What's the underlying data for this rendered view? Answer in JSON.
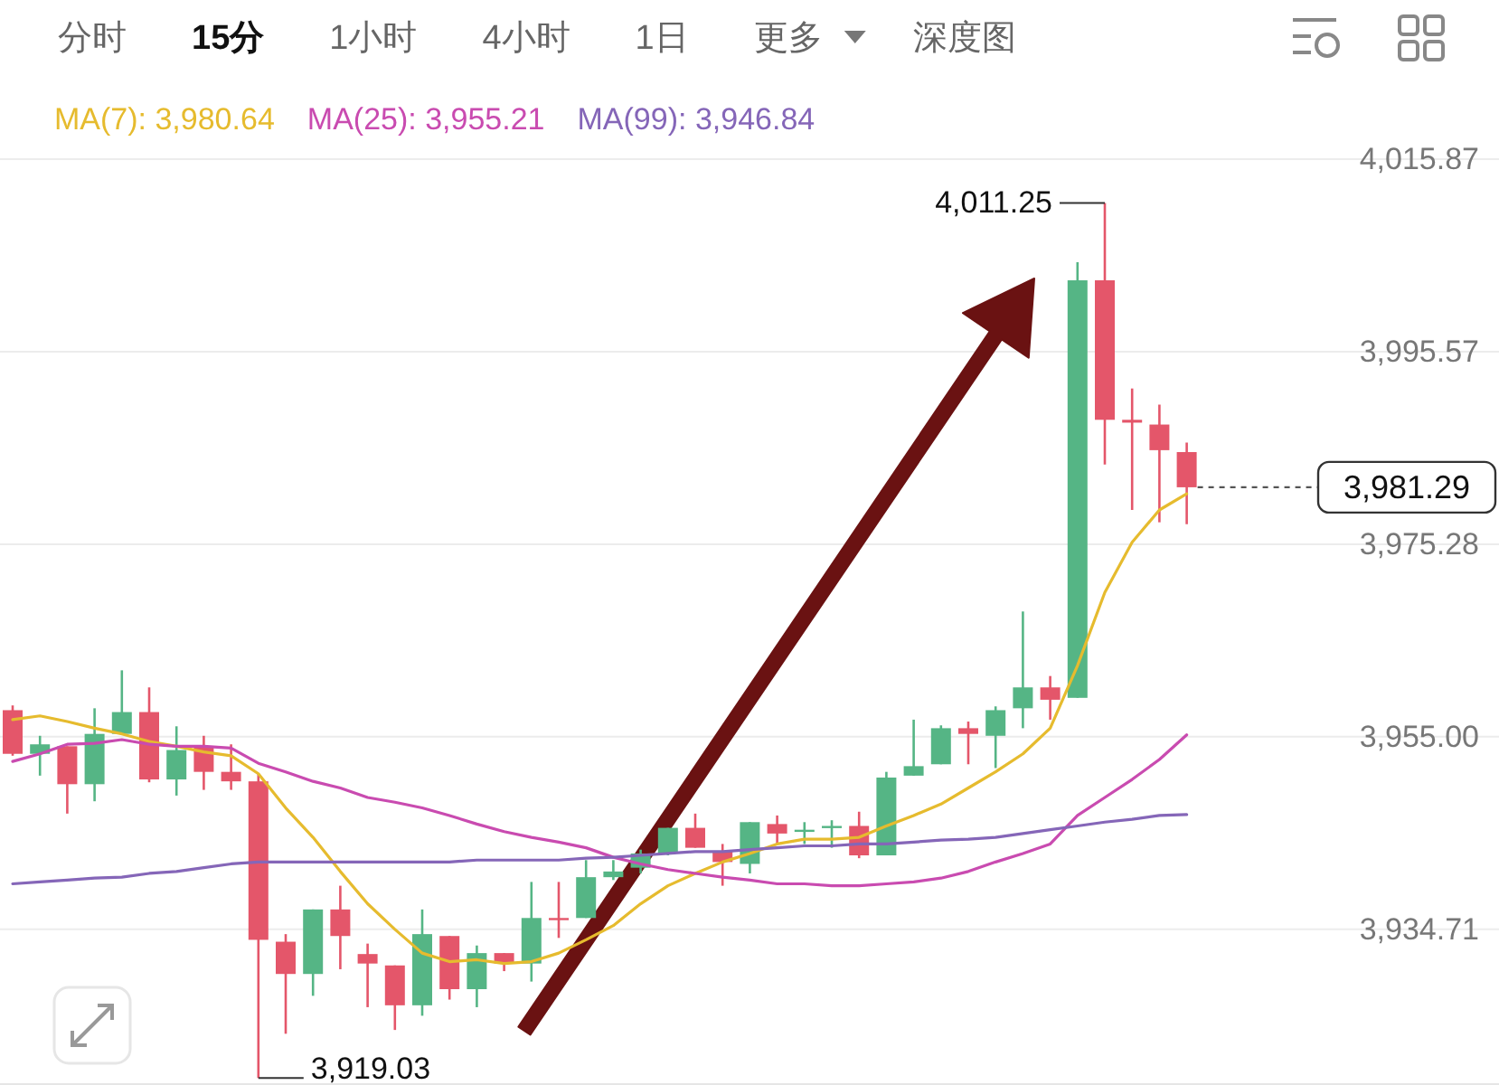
{
  "chart_data": {
    "type": "candlestick",
    "categories": [
      null,
      null,
      null,
      null,
      null,
      null,
      null,
      null,
      null,
      null,
      null,
      null,
      null,
      null,
      null,
      null,
      null,
      null,
      null,
      null,
      null,
      null,
      null,
      null,
      null,
      null,
      null,
      null,
      null,
      null,
      null,
      null,
      null,
      null,
      null,
      null,
      null,
      null,
      null,
      null,
      null,
      null,
      null,
      null
    ],
    "ohlc": [
      [
        3957.8,
        3958.3,
        3953.0,
        3953.2
      ],
      [
        3953.2,
        3955.1,
        3950.9,
        3954.2
      ],
      [
        3954.0,
        3954.0,
        3946.9,
        3950.0
      ],
      [
        3950.0,
        3958.0,
        3948.2,
        3955.3
      ],
      [
        3955.3,
        3962.0,
        3955.3,
        3957.6
      ],
      [
        3957.6,
        3960.2,
        3950.2,
        3950.5
      ],
      [
        3950.5,
        3956.1,
        3948.8,
        3953.6
      ],
      [
        3954.0,
        3955.1,
        3949.4,
        3951.3
      ],
      [
        3951.3,
        3954.2,
        3949.4,
        3950.3
      ],
      [
        3950.3,
        3951.1,
        3919.03,
        3933.6
      ],
      [
        3933.4,
        3934.2,
        3923.7,
        3930.0
      ],
      [
        3930.0,
        3936.8,
        3927.7,
        3936.8
      ],
      [
        3936.8,
        3939.3,
        3930.5,
        3934.0
      ],
      [
        3932.1,
        3933.2,
        3926.5,
        3931.1
      ],
      [
        3930.9,
        3930.9,
        3924.1,
        3926.7
      ],
      [
        3926.7,
        3936.8,
        3925.6,
        3934.2
      ],
      [
        3934.0,
        3934.0,
        3927.3,
        3928.4
      ],
      [
        3928.4,
        3933.0,
        3926.5,
        3932.2
      ],
      [
        3932.2,
        3932.2,
        3930.3,
        3931.1
      ],
      [
        3931.1,
        3939.7,
        3929.2,
        3935.9
      ],
      [
        3935.9,
        3939.7,
        3933.8,
        3935.7
      ],
      [
        3935.9,
        3942.0,
        3935.9,
        3940.2
      ],
      [
        3940.2,
        3942.0,
        3939.9,
        3940.8
      ],
      [
        3941.2,
        3943.1,
        3940.6,
        3942.7
      ],
      [
        3942.7,
        3945.4,
        3942.5,
        3945.4
      ],
      [
        3945.4,
        3946.9,
        3943.3,
        3943.3
      ],
      [
        3942.9,
        3943.7,
        3939.3,
        3941.8
      ],
      [
        3941.6,
        3946.0,
        3940.6,
        3946.0
      ],
      [
        3945.8,
        3946.7,
        3943.7,
        3944.8
      ],
      [
        3945.0,
        3946.0,
        3943.7,
        3945.2
      ],
      [
        3945.4,
        3946.2,
        3943.3,
        3945.6
      ],
      [
        3945.6,
        3947.1,
        3942.2,
        3942.5
      ],
      [
        3942.5,
        3951.3,
        3942.5,
        3950.7
      ],
      [
        3950.9,
        3956.8,
        3950.9,
        3951.9
      ],
      [
        3952.1,
        3956.2,
        3952.1,
        3955.9
      ],
      [
        3955.9,
        3956.6,
        3952.1,
        3955.3
      ],
      [
        3955.1,
        3958.2,
        3951.7,
        3957.8
      ],
      [
        3958.0,
        3968.2,
        3955.9,
        3960.2
      ],
      [
        3960.2,
        3961.4,
        3956.8,
        3958.9
      ],
      [
        3959.1,
        4005.0,
        3959.1,
        4003.1
      ],
      [
        4003.1,
        4011.25,
        3983.7,
        3988.4
      ],
      [
        3988.4,
        3991.7,
        3978.9,
        3988.1
      ],
      [
        3987.9,
        3990.0,
        3977.6,
        3985.2
      ],
      [
        3985.0,
        3986.0,
        3977.4,
        3981.29
      ]
    ],
    "series": [
      {
        "name": "MA(7): 3,980.64",
        "color": "#e6bb2e",
        "type": "line",
        "values": [
          3956.8,
          3957.2,
          3956.6,
          3955.9,
          3955.3,
          3954.5,
          3954.0,
          3953.4,
          3953.0,
          3951.1,
          3947.5,
          3944.4,
          3940.8,
          3937.4,
          3934.7,
          3932.2,
          3931.3,
          3931.5,
          3931.1,
          3931.3,
          3932.2,
          3933.6,
          3935.1,
          3937.4,
          3939.3,
          3940.6,
          3941.8,
          3942.7,
          3943.7,
          3944.2,
          3944.2,
          3944.4,
          3945.6,
          3946.7,
          3947.9,
          3949.6,
          3951.3,
          3953.2,
          3955.9,
          3962.5,
          3970.2,
          3975.5,
          3978.9,
          3980.6
        ]
      },
      {
        "name": "MA(25): 3,955.21",
        "color": "#c94bb0",
        "type": "line",
        "values": [
          3952.4,
          3953.2,
          3954.2,
          3954.3,
          3954.7,
          3954.2,
          3954.0,
          3954.0,
          3953.8,
          3952.2,
          3951.3,
          3950.3,
          3949.6,
          3948.6,
          3948.1,
          3947.5,
          3946.7,
          3945.8,
          3945.0,
          3944.4,
          3943.9,
          3943.3,
          3942.3,
          3941.6,
          3941.0,
          3940.6,
          3940.2,
          3939.9,
          3939.5,
          3939.5,
          3939.3,
          3939.3,
          3939.5,
          3939.7,
          3940.1,
          3940.8,
          3941.8,
          3942.7,
          3943.7,
          3946.7,
          3948.6,
          3950.5,
          3952.6,
          3955.2
        ]
      },
      {
        "name": "MA(99): 3,946.84",
        "color": "#8566b8",
        "type": "line",
        "values": [
          3939.5,
          3939.7,
          3939.9,
          3940.1,
          3940.2,
          3940.6,
          3940.8,
          3941.2,
          3941.6,
          3941.8,
          3941.8,
          3941.8,
          3941.8,
          3941.8,
          3941.8,
          3941.8,
          3941.8,
          3942.0,
          3942.0,
          3942.0,
          3942.0,
          3942.2,
          3942.3,
          3942.5,
          3942.7,
          3942.9,
          3942.9,
          3943.1,
          3943.3,
          3943.5,
          3943.5,
          3943.7,
          3943.7,
          3943.9,
          3944.1,
          3944.2,
          3944.4,
          3944.8,
          3945.2,
          3945.6,
          3946.0,
          3946.3,
          3946.7,
          3946.8
        ]
      }
    ],
    "ylim": [
      3918.3,
      4015.87
    ],
    "yticks": [
      {
        "value": 4015.87,
        "label": "4,015.87"
      },
      {
        "value": 3995.57,
        "label": "3,995.57"
      },
      {
        "value": 3975.28,
        "label": "3,975.28"
      },
      {
        "value": 3955.0,
        "label": "3,955.00"
      },
      {
        "value": 3934.71,
        "label": "3,934.71"
      }
    ],
    "grid": "y",
    "legend": "top",
    "ref_lines": [
      {
        "axis": "y",
        "value": 3981.29,
        "label": "3,981.29",
        "color": "#555555",
        "line_style": "dotted"
      }
    ],
    "annotations": [
      "分时",
      "15分",
      "1小时",
      "4小时",
      "1日",
      "更多",
      "深度图",
      "4,011.25",
      "3,919.03"
    ]
  }
}
